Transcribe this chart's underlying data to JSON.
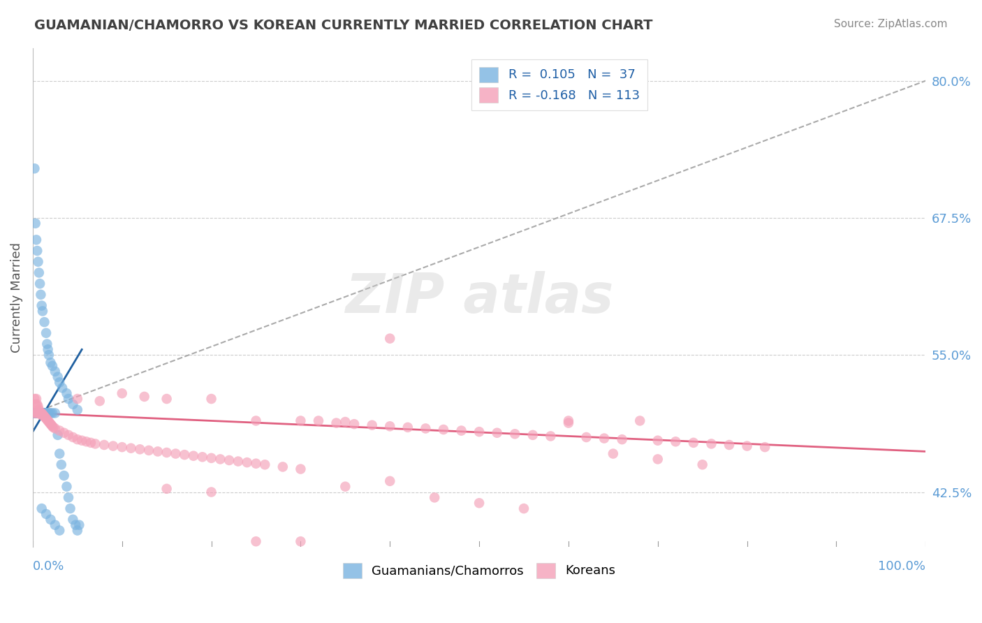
{
  "title": "GUAMANIAN/CHAMORRO VS KOREAN CURRENTLY MARRIED CORRELATION CHART",
  "source": "Source: ZipAtlas.com",
  "ylabel": "Currently Married",
  "r_blue": 0.105,
  "n_blue": 37,
  "r_pink": -0.168,
  "n_pink": 113,
  "background_color": "#ffffff",
  "grid_color": "#cccccc",
  "blue_color": "#7ab3e0",
  "pink_color": "#f4a0b8",
  "blue_line_color": "#2060a0",
  "pink_line_color": "#e06080",
  "dashed_color": "#aaaaaa",
  "title_color": "#404040",
  "tick_color": "#5b9bd5",
  "ylabel_color": "#555555",
  "blue_line_y0": 0.48,
  "blue_line_y1": 0.555,
  "pink_line_y0": 0.497,
  "pink_line_y1": 0.462,
  "dashed_line_y0": 0.497,
  "dashed_line_y1": 0.8,
  "y_min": 0.375,
  "y_max": 0.83,
  "x_min": 0.0,
  "x_max": 1.0,
  "ytick_positions": [
    0.425,
    0.55,
    0.675,
    0.8
  ],
  "ytick_labels": [
    "42.5%",
    "55.0%",
    "67.5%",
    "80.0%"
  ],
  "blue_x": [
    0.001,
    0.002,
    0.002,
    0.003,
    0.003,
    0.004,
    0.004,
    0.005,
    0.005,
    0.006,
    0.006,
    0.007,
    0.007,
    0.008,
    0.008,
    0.009,
    0.009,
    0.01,
    0.01,
    0.011,
    0.012,
    0.013,
    0.014,
    0.015,
    0.016,
    0.017,
    0.018,
    0.02,
    0.022,
    0.025,
    0.028,
    0.03,
    0.033,
    0.038,
    0.04,
    0.045,
    0.05
  ],
  "blue_y": [
    0.497,
    0.72,
    0.497,
    0.67,
    0.497,
    0.655,
    0.497,
    0.645,
    0.497,
    0.635,
    0.497,
    0.625,
    0.497,
    0.615,
    0.497,
    0.605,
    0.497,
    0.595,
    0.497,
    0.59,
    0.497,
    0.58,
    0.497,
    0.57,
    0.56,
    0.555,
    0.55,
    0.543,
    0.54,
    0.535,
    0.53,
    0.525,
    0.52,
    0.515,
    0.51,
    0.505,
    0.5
  ],
  "blue_x2": [
    0.001,
    0.002,
    0.003,
    0.004,
    0.005,
    0.006,
    0.007,
    0.008,
    0.009,
    0.01,
    0.011,
    0.012,
    0.013,
    0.014,
    0.015,
    0.016,
    0.017,
    0.018,
    0.02,
    0.022,
    0.025,
    0.028,
    0.03,
    0.032,
    0.035,
    0.038,
    0.04,
    0.042,
    0.045,
    0.048,
    0.05,
    0.052,
    0.01,
    0.015,
    0.02,
    0.025,
    0.03
  ],
  "blue_y2": [
    0.497,
    0.497,
    0.497,
    0.497,
    0.497,
    0.497,
    0.497,
    0.497,
    0.497,
    0.497,
    0.497,
    0.497,
    0.497,
    0.497,
    0.497,
    0.497,
    0.497,
    0.497,
    0.497,
    0.497,
    0.497,
    0.477,
    0.46,
    0.45,
    0.44,
    0.43,
    0.42,
    0.41,
    0.4,
    0.395,
    0.39,
    0.395,
    0.41,
    0.405,
    0.4,
    0.395,
    0.39
  ],
  "pink_x": [
    0.001,
    0.002,
    0.003,
    0.003,
    0.004,
    0.005,
    0.005,
    0.006,
    0.006,
    0.007,
    0.007,
    0.008,
    0.008,
    0.009,
    0.009,
    0.01,
    0.01,
    0.011,
    0.012,
    0.013,
    0.014,
    0.015,
    0.016,
    0.017,
    0.018,
    0.019,
    0.02,
    0.021,
    0.022,
    0.023,
    0.025,
    0.03,
    0.035,
    0.04,
    0.045,
    0.05,
    0.055,
    0.06,
    0.065,
    0.07,
    0.08,
    0.09,
    0.1,
    0.11,
    0.12,
    0.13,
    0.14,
    0.15,
    0.16,
    0.17,
    0.18,
    0.19,
    0.2,
    0.21,
    0.22,
    0.23,
    0.24,
    0.25,
    0.26,
    0.28,
    0.3,
    0.32,
    0.34,
    0.36,
    0.38,
    0.4,
    0.42,
    0.44,
    0.46,
    0.48,
    0.5,
    0.52,
    0.54,
    0.56,
    0.58,
    0.6,
    0.62,
    0.64,
    0.66,
    0.68,
    0.7,
    0.72,
    0.74,
    0.76,
    0.78,
    0.8,
    0.82,
    0.05,
    0.075,
    0.1,
    0.125,
    0.15,
    0.2,
    0.25,
    0.3,
    0.35,
    0.4,
    0.15,
    0.2,
    0.25,
    0.3,
    0.35,
    0.4,
    0.45,
    0.5,
    0.55,
    0.6,
    0.65,
    0.7,
    0.75
  ],
  "pink_y": [
    0.497,
    0.51,
    0.505,
    0.497,
    0.51,
    0.505,
    0.497,
    0.503,
    0.497,
    0.5,
    0.497,
    0.498,
    0.497,
    0.497,
    0.496,
    0.497,
    0.495,
    0.496,
    0.495,
    0.494,
    0.493,
    0.492,
    0.491,
    0.49,
    0.489,
    0.488,
    0.487,
    0.486,
    0.485,
    0.484,
    0.483,
    0.481,
    0.479,
    0.477,
    0.475,
    0.473,
    0.472,
    0.471,
    0.47,
    0.469,
    0.468,
    0.467,
    0.466,
    0.465,
    0.464,
    0.463,
    0.462,
    0.461,
    0.46,
    0.459,
    0.458,
    0.457,
    0.456,
    0.455,
    0.454,
    0.453,
    0.452,
    0.451,
    0.45,
    0.448,
    0.446,
    0.49,
    0.488,
    0.487,
    0.486,
    0.485,
    0.484,
    0.483,
    0.482,
    0.481,
    0.48,
    0.479,
    0.478,
    0.477,
    0.476,
    0.488,
    0.475,
    0.474,
    0.473,
    0.49,
    0.472,
    0.471,
    0.47,
    0.469,
    0.468,
    0.467,
    0.466,
    0.51,
    0.508,
    0.515,
    0.512,
    0.51,
    0.51,
    0.49,
    0.49,
    0.489,
    0.565,
    0.428,
    0.425,
    0.38,
    0.38,
    0.43,
    0.435,
    0.42,
    0.415,
    0.41,
    0.49,
    0.46,
    0.455,
    0.45
  ]
}
